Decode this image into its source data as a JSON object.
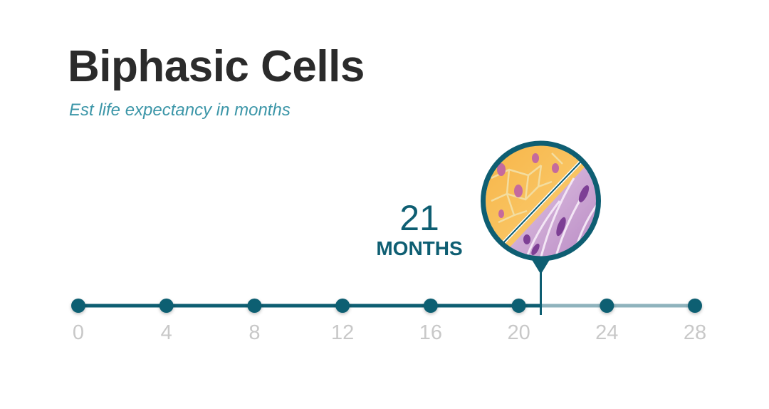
{
  "title": "Biphasic Cells",
  "subtitle": "Est life expectancy in months",
  "marker": {
    "value_text": "21",
    "unit": "MONTHS"
  },
  "colors": {
    "accent": "#0e5e72",
    "track_inactive": "#8fb3bd",
    "tick_label": "#c8c8c8",
    "title": "#2b2b2b",
    "subtitle": "#3c96a8"
  },
  "chart_data": {
    "type": "timeline",
    "x": [
      0,
      4,
      8,
      12,
      16,
      20,
      24,
      28
    ],
    "tick_labels": [
      "0",
      "4",
      "8",
      "12",
      "16",
      "20",
      "24",
      "28"
    ],
    "xlim": [
      0,
      28
    ],
    "value": 21,
    "grid": false,
    "legend": "none"
  }
}
